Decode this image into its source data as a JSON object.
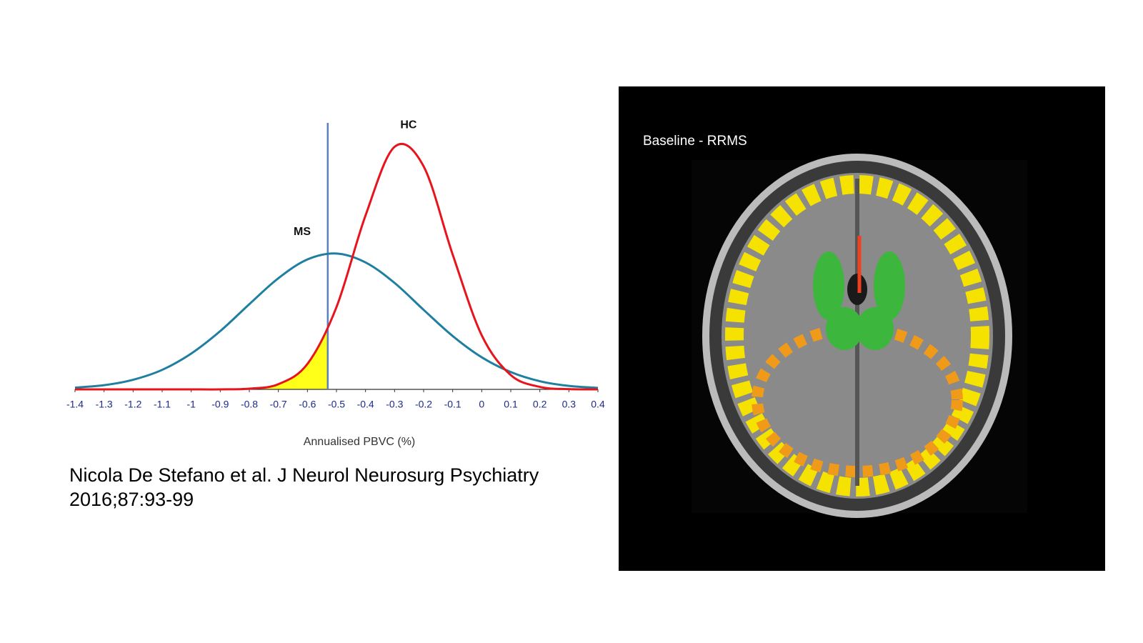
{
  "chart_data": {
    "type": "line",
    "x": [
      -1.4,
      -1.3,
      -1.2,
      -1.1,
      -1,
      -0.9,
      -0.8,
      -0.7,
      -0.6,
      -0.5,
      -0.4,
      -0.3,
      -0.2,
      -0.1,
      0,
      0.1,
      0.2,
      0.3,
      0.4
    ],
    "series": [
      {
        "name": "HC",
        "color": "#e8141c",
        "values": [
          0,
          0,
          0,
          0,
          0,
          0,
          0.3,
          2.1,
          10.3,
          33.3,
          70.4,
          98.2,
          90.3,
          54.6,
          21.9,
          5.8,
          1.0,
          0.1,
          0
        ]
      },
      {
        "name": "MS",
        "color": "#1f7fa0",
        "values": [
          0.7,
          1.7,
          3.9,
          7.9,
          14.5,
          23.6,
          34.5,
          45.0,
          52.6,
          55.0,
          51.4,
          43.1,
          32.2,
          21.6,
          13.0,
          7.0,
          3.3,
          1.4,
          0.6
        ]
      }
    ],
    "cutoff": -0.53,
    "cutoff_color": "#5b7fbf",
    "shade_color": "#ffff1a",
    "xlabel": "Annualised PBVC (%)",
    "xlim": [
      -1.4,
      0.4
    ],
    "xticks": [
      -1.4,
      -1.3,
      -1.2,
      -1.1,
      -1,
      -0.9,
      -0.8,
      -0.7,
      -0.6,
      -0.5,
      -0.4,
      -0.3,
      -0.2,
      -0.1,
      0,
      0.1,
      0.2,
      0.3,
      0.4
    ],
    "ylim": [
      0,
      105
    ]
  },
  "citation": "Nicola De Stefano et al. J Neurol Neurosurg Psychiatry 2016;87:93-99",
  "image": {
    "caption": "Baseline - RRMS"
  }
}
